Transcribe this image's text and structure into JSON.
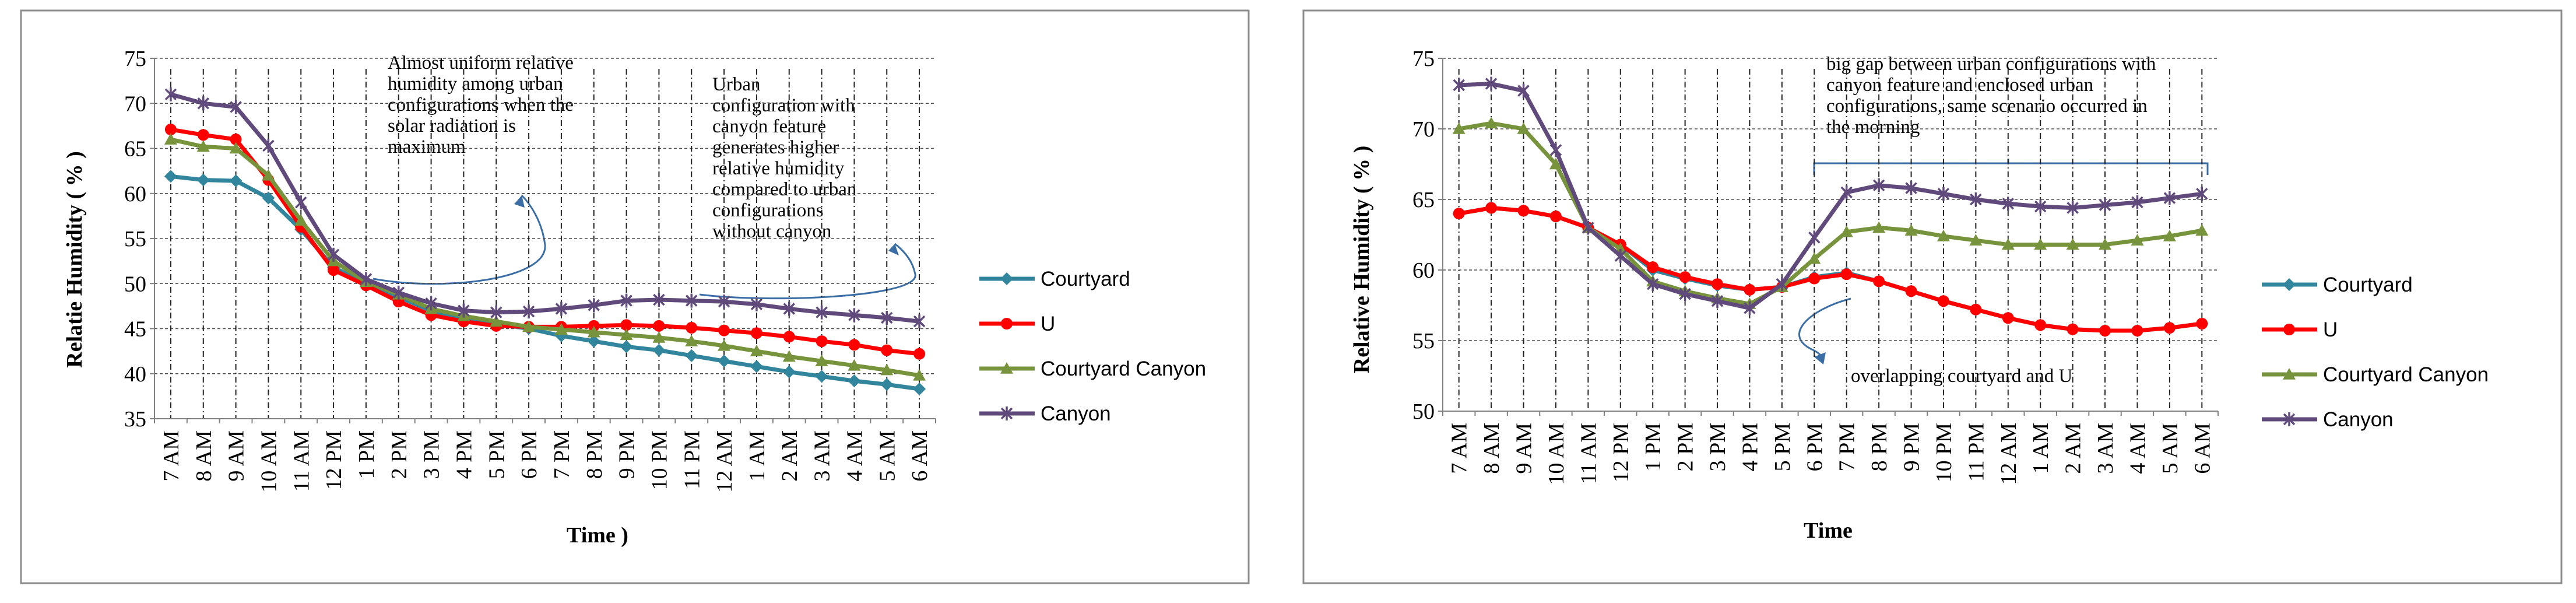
{
  "chart_data": [
    {
      "type": "line",
      "title": "",
      "xlabel": "Time )",
      "ylabel": "Relatie Humidity ( % )",
      "ylim": [
        35,
        75
      ],
      "yticks": [
        35,
        40,
        45,
        50,
        55,
        60,
        65,
        70,
        75
      ],
      "grid": true,
      "legend": "right",
      "categories": [
        "7 AM",
        "8 AM",
        "9 AM",
        "10 AM",
        "11 AM",
        "12 PM",
        "1 PM",
        "2 PM",
        "3 PM",
        "4 PM",
        "5 PM",
        "6 PM",
        "7 PM",
        "8 PM",
        "9 PM",
        "10 PM",
        "11 PM",
        "12 AM",
        "1 AM",
        "2 AM",
        "3 AM",
        "4 AM",
        "5 AM",
        "6 AM"
      ],
      "series": [
        {
          "name": "Courtyard",
          "color": "#31859c",
          "marker": "diamond",
          "values": [
            61.9,
            61.5,
            61.4,
            59.5,
            56.0,
            51.8,
            50.0,
            48.5,
            47.0,
            46.0,
            45.5,
            45.0,
            44.2,
            43.6,
            43.0,
            42.6,
            42.0,
            41.4,
            40.8,
            40.2,
            39.7,
            39.2,
            38.8,
            38.3
          ]
        },
        {
          "name": "U",
          "color": "#ff0000",
          "marker": "circle",
          "values": [
            67.1,
            66.5,
            66.0,
            61.5,
            56.3,
            51.5,
            49.8,
            48.0,
            46.5,
            45.8,
            45.3,
            45.2,
            45.2,
            45.3,
            45.4,
            45.3,
            45.1,
            44.8,
            44.5,
            44.1,
            43.6,
            43.2,
            42.6,
            42.2
          ]
        },
        {
          "name": "Courtyard Canyon",
          "color": "#77933c",
          "marker": "triangle",
          "values": [
            66.0,
            65.2,
            65.0,
            62.0,
            57.0,
            52.5,
            50.2,
            48.8,
            47.2,
            46.4,
            45.8,
            45.2,
            44.9,
            44.6,
            44.3,
            44.0,
            43.6,
            43.1,
            42.5,
            41.9,
            41.4,
            40.9,
            40.4,
            39.8
          ]
        },
        {
          "name": "Canyon",
          "color": "#604a7b",
          "marker": "asterisk",
          "values": [
            71.0,
            70.0,
            69.6,
            65.3,
            59.0,
            53.2,
            50.5,
            49.0,
            47.8,
            47.0,
            46.8,
            46.9,
            47.2,
            47.6,
            48.1,
            48.2,
            48.1,
            48.0,
            47.7,
            47.2,
            46.8,
            46.5,
            46.2,
            45.8
          ]
        }
      ],
      "annotations": [
        {
          "text": "Almost uniform relative humidity among urban configurations when the solar radiation is maximum"
        },
        {
          "text": "Urban configuration with canyon feature generates higher relative humidity compared to urban configurations without canyon"
        }
      ]
    },
    {
      "type": "line",
      "title": "",
      "xlabel": "Time",
      "ylabel": "Relative Humidity ( % )",
      "ylim": [
        50,
        75
      ],
      "yticks": [
        50,
        55,
        60,
        65,
        70,
        75
      ],
      "grid": true,
      "legend": "right",
      "categories": [
        "7 AM",
        "8 AM",
        "9 AM",
        "10 AM",
        "11 AM",
        "12 PM",
        "1 PM",
        "2 PM",
        "3 PM",
        "4 PM",
        "5 PM",
        "6 PM",
        "7 PM",
        "8 PM",
        "9 PM",
        "10 PM",
        "11 PM",
        "12 AM",
        "1 AM",
        "2 AM",
        "3 AM",
        "4 AM",
        "5 AM",
        "6 AM"
      ],
      "series": [
        {
          "name": "Courtyard",
          "color": "#31859c",
          "marker": "diamond",
          "values": [
            64.0,
            64.4,
            64.2,
            63.8,
            63.0,
            61.8,
            60.0,
            59.4,
            58.9,
            58.6,
            58.8,
            59.5,
            59.8,
            59.2,
            58.5,
            57.8,
            57.2,
            56.6,
            56.1,
            55.8,
            55.7,
            55.7,
            55.9,
            56.2
          ]
        },
        {
          "name": "U",
          "color": "#ff0000",
          "marker": "circle",
          "values": [
            64.0,
            64.4,
            64.2,
            63.8,
            63.0,
            61.8,
            60.2,
            59.5,
            59.0,
            58.6,
            58.8,
            59.4,
            59.7,
            59.2,
            58.5,
            57.8,
            57.2,
            56.6,
            56.1,
            55.8,
            55.7,
            55.7,
            55.9,
            56.2
          ]
        },
        {
          "name": "Courtyard Canyon",
          "color": "#77933c",
          "marker": "triangle",
          "values": [
            70.0,
            70.4,
            70.0,
            67.5,
            63.0,
            61.5,
            59.2,
            58.5,
            58.0,
            57.6,
            58.8,
            60.8,
            62.7,
            63.0,
            62.8,
            62.4,
            62.1,
            61.8,
            61.8,
            61.8,
            61.8,
            62.1,
            62.4,
            62.8
          ]
        },
        {
          "name": "Canyon",
          "color": "#604a7b",
          "marker": "asterisk",
          "values": [
            73.1,
            73.2,
            72.7,
            68.5,
            63.0,
            61.0,
            59.0,
            58.3,
            57.8,
            57.3,
            59.0,
            62.3,
            65.5,
            66.0,
            65.8,
            65.4,
            65.0,
            64.7,
            64.5,
            64.4,
            64.6,
            64.8,
            65.1,
            65.4
          ]
        }
      ],
      "annotations": [
        {
          "text": "big gap between urban configurations  with canyon feature and enclosed urban configurations,  same scenario occurred in the morning"
        },
        {
          "text": "overlapping  courtyard and U"
        }
      ]
    }
  ]
}
